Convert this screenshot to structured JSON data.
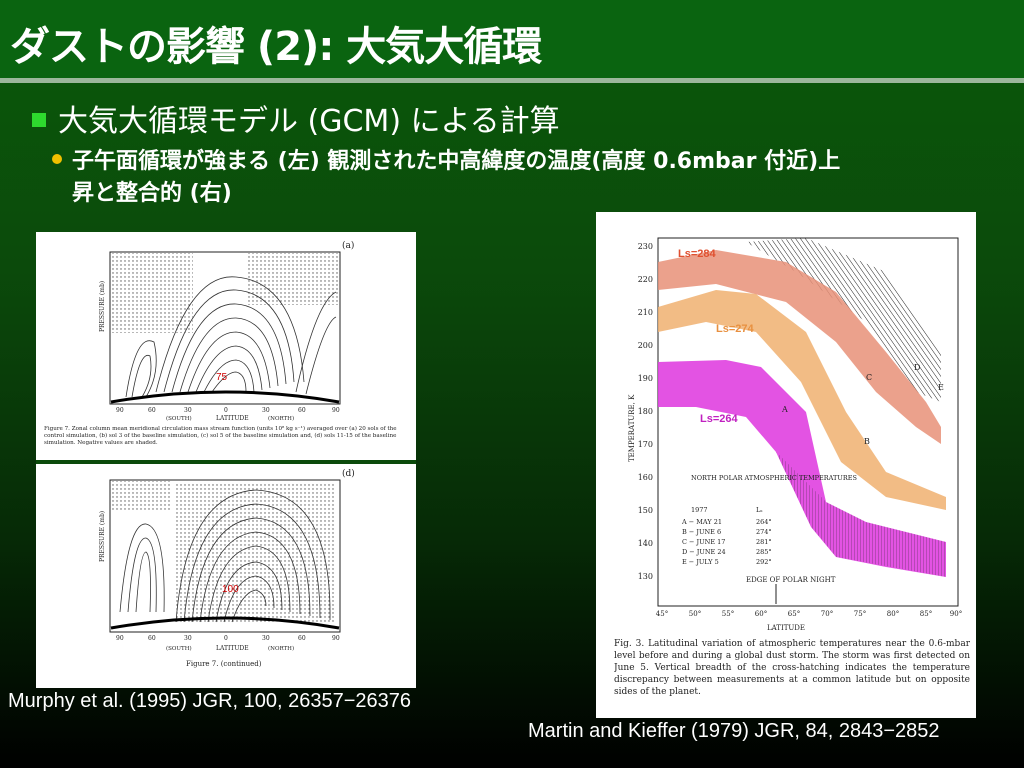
{
  "slide": {
    "title": "ダストの影響 (2): 大気大循環",
    "bullet1": "大気大循環モデル (GCM) による計算",
    "bullet2_line1": "子午面循環が強まる (左) 観測された中高緯度の温度(高度 0.6mbar 付近)上",
    "bullet2_line2": "昇と整合的 (右)",
    "citation_left": "Murphy et al. (1995) JGR, 100, 26357−26376",
    "citation_right": "Martin and Kieffer (1979) JGR, 84, 2843−2852"
  },
  "figure_left": {
    "panel_a_label": "(a)",
    "panel_d_label": "(d)",
    "panel_a_value": "75",
    "panel_d_value": "100",
    "x_axis_label": "LATITUDE",
    "south_label": "(SOUTH)",
    "north_label": "(NORTH)",
    "y_axis_label": "PRESSURE (mb)",
    "caption_a": "Figure 7. Zonal column mean meridional circulation mass stream function (units 10⁸ kg s⁻¹) averaged over (a) 20 sols of the control simulation, (b) sol 3 of the baseline simulation, (c) sol 5 of the baseline simulation and, (d) sols 11-15 of the baseline simulation. Negative values are shaded.",
    "caption_d": "Figure 7. (continued)",
    "x_ticks": [
      "90",
      "60",
      "30",
      "0",
      "30",
      "60",
      "90"
    ]
  },
  "figure_right": {
    "series_labels": [
      "Ls=284",
      "Ls=274",
      "Ls=264"
    ],
    "series_colors": [
      "#e05030",
      "#e89040",
      "#e040e0"
    ],
    "y_ticks": [
      "230",
      "220",
      "210",
      "200",
      "190",
      "180",
      "170",
      "160",
      "150",
      "140",
      "130"
    ],
    "x_ticks": [
      "45°",
      "50°",
      "55°",
      "60°",
      "65°",
      "70°",
      "75°",
      "80°",
      "85°",
      "90°"
    ],
    "x_axis_label": "LATITUDE",
    "y_axis_label": "TEMPERATURE, K",
    "legend_title": "NORTH POLAR ATMOSPHERIC TEMPERATURES",
    "legend_year": "1977",
    "legend_ls_header": "Lₛ",
    "legend_rows": [
      {
        "key": "A − MAY 21",
        "ls": "264°"
      },
      {
        "key": "B − JUNE 6",
        "ls": "274°"
      },
      {
        "key": "C − JUNE 17",
        "ls": "281°"
      },
      {
        "key": "D − JUNE 24",
        "ls": "285°"
      },
      {
        "key": "E − JULY 5",
        "ls": "292°"
      }
    ],
    "annotation": "EDGE OF POLAR NIGHT",
    "curve_letters": [
      "A",
      "B",
      "C",
      "D",
      "E"
    ],
    "caption": "Fig. 3. Latitudinal variation of atmospheric temperatures near the 0.6-mbar level before and during a global dust storm. The storm was first detected on June 5. Vertical breadth of the cross-hatching indicates the temperature discrepancy between measurements at a common latitude but on opposite sides of the planet."
  }
}
